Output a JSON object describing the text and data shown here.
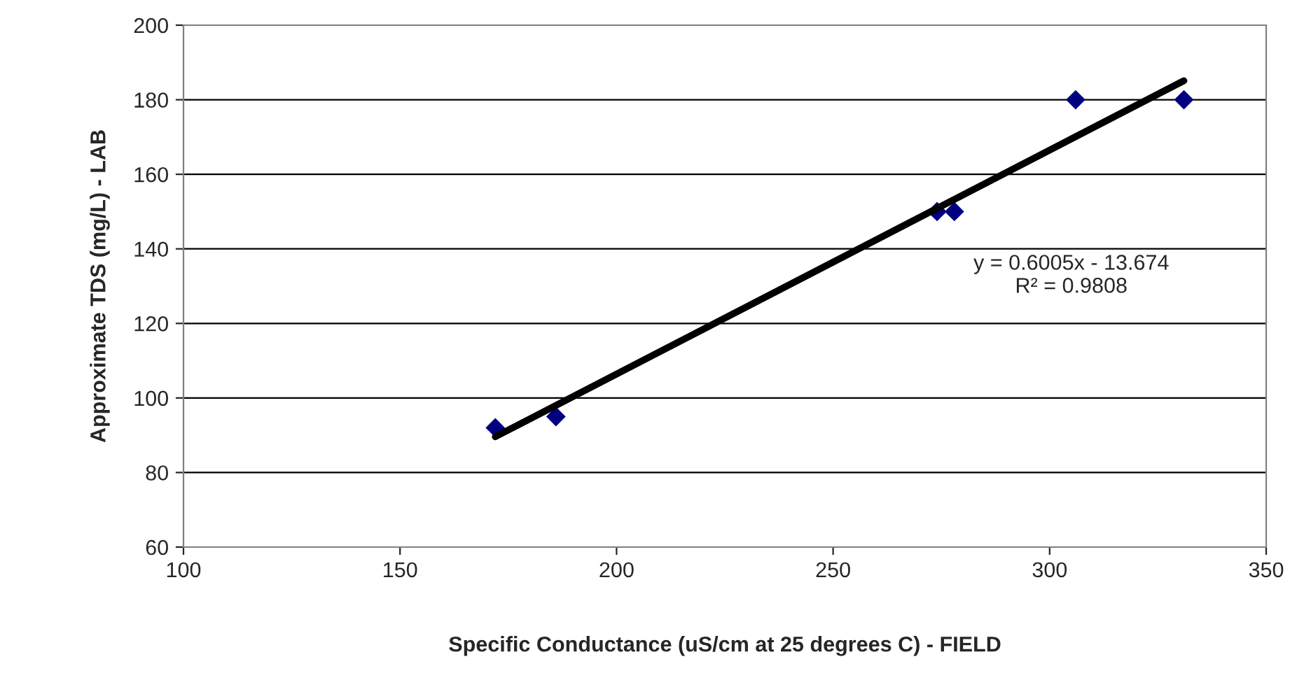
{
  "chart_data": {
    "type": "scatter",
    "xlabel": "Specific Conductance (uS/cm at 25 degrees C) - FIELD",
    "ylabel": "Approximate TDS (mg/L) - LAB",
    "series": [
      {
        "color": "#000080",
        "marker": "diamond",
        "x": [
          172,
          186,
          274,
          278,
          306,
          331
        ],
        "values": [
          92,
          95,
          150,
          150,
          180,
          180
        ]
      },
      {
        "type": "line",
        "color": "#000000",
        "marker": "none",
        "x": [
          172,
          331
        ],
        "values": [
          89.6,
          185.1
        ]
      }
    ],
    "annotations": [
      "y = 0.6005x - 13.674\nR² = 0.9808"
    ],
    "xlim": [
      100,
      350
    ],
    "xticks": [
      100,
      150,
      200,
      250,
      300,
      350
    ],
    "ylim": [
      60,
      200
    ],
    "yticks": [
      60,
      80,
      100,
      120,
      140,
      160,
      180,
      200
    ],
    "grid": "y",
    "legend": false
  }
}
